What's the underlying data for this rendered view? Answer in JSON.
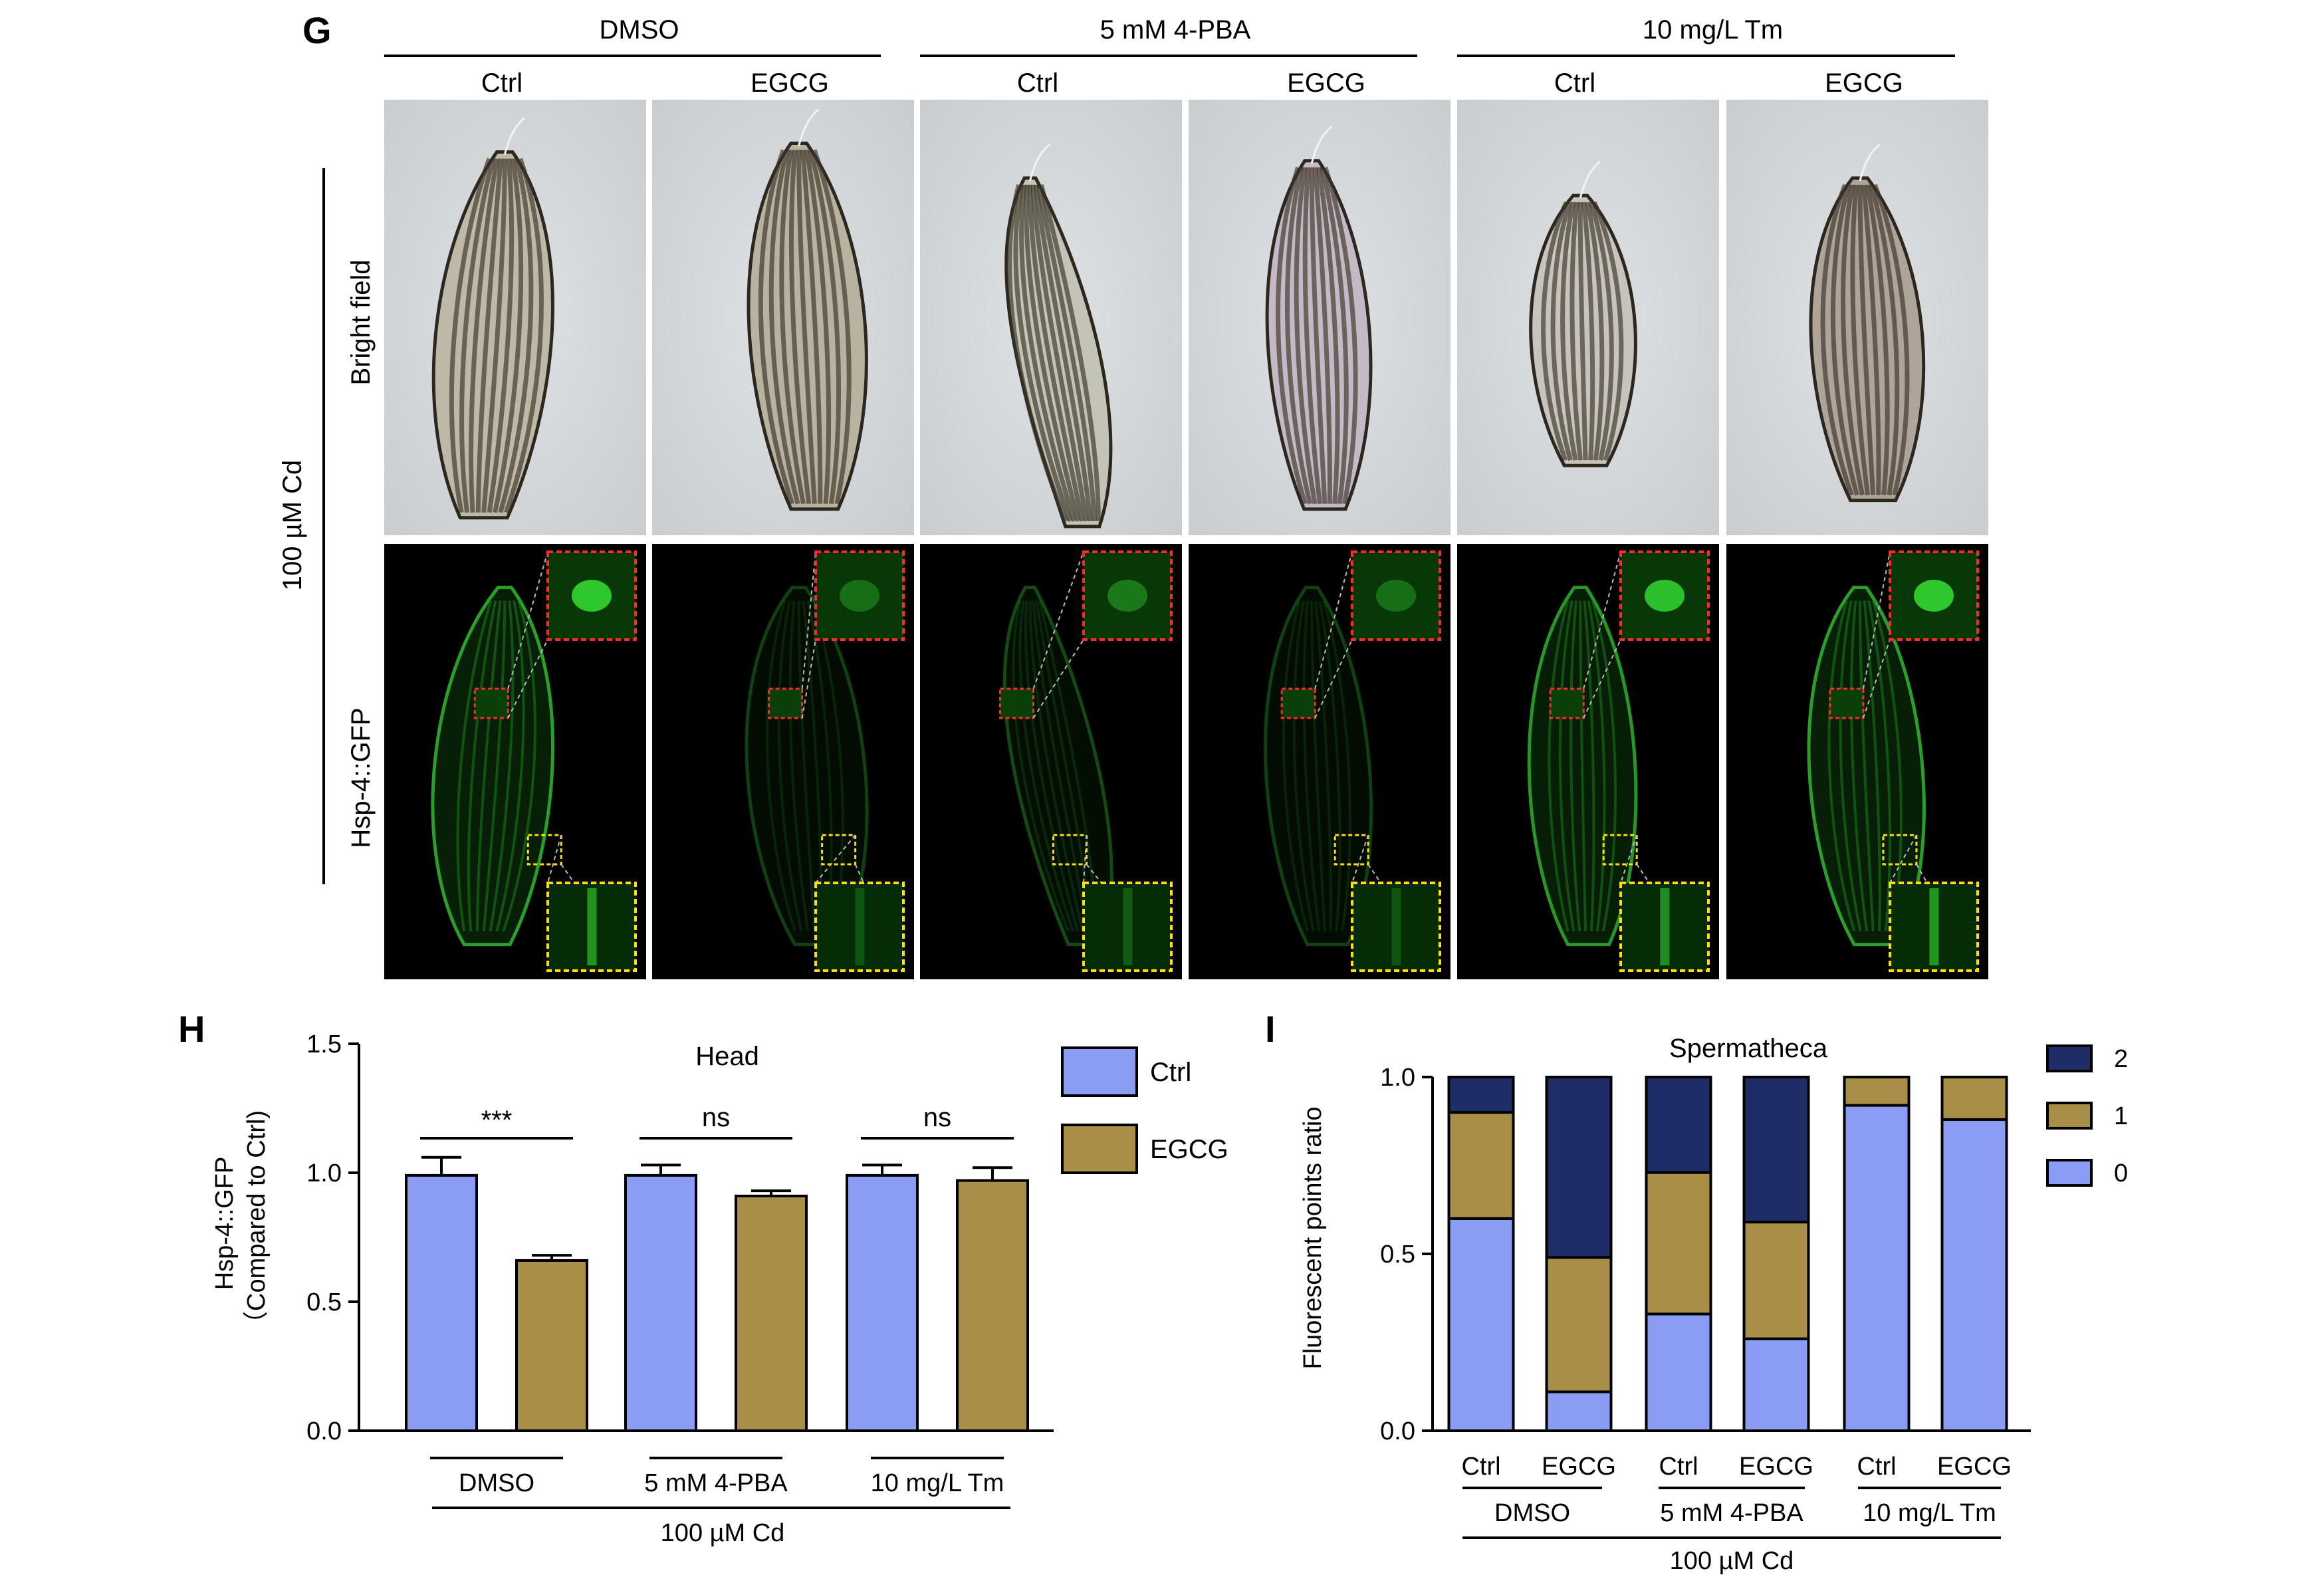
{
  "panel_g": {
    "panel_label": "G",
    "groups": [
      "DMSO",
      "5 mM 4-PBA",
      "10 mg/L Tm"
    ],
    "columns": [
      "Ctrl",
      "EGCG",
      "Ctrl",
      "EGCG",
      "Ctrl",
      "EGCG"
    ],
    "row_labels": [
      "Bright field",
      "Hsp-4::GFP"
    ],
    "side_label": "100 µM Cd"
  },
  "panel_h": {
    "panel_label": "H",
    "chart_data": {
      "type": "bar",
      "title": "Head",
      "ylabel": "Hsp-4::GFP",
      "ylabel2": "（Compared to Ctrl)",
      "ylim": [
        0,
        1.5
      ],
      "yticks": [
        "0.0",
        "0.5",
        "1.0",
        "1.5"
      ],
      "groups": [
        "DMSO",
        "5 mM 4-PBA",
        "10 mg/L Tm"
      ],
      "bottom_label": "100 µM Cd",
      "series": [
        {
          "name": "Ctrl",
          "color": "#8b9cf4",
          "values": [
            0.99,
            0.99,
            0.99
          ],
          "errors": [
            0.07,
            0.04,
            0.04
          ]
        },
        {
          "name": "EGCG",
          "color": "#a98e48",
          "values": [
            0.66,
            0.91,
            0.97
          ],
          "errors": [
            0.02,
            0.02,
            0.05
          ]
        }
      ],
      "significance": [
        "***",
        "ns",
        "ns"
      ],
      "legend_position": "top-right"
    }
  },
  "panel_i": {
    "panel_label": "I",
    "chart_data": {
      "type": "bar",
      "stacked": true,
      "title": "Spermatheca",
      "ylabel": "Fluorescent points ratio",
      "ylim": [
        0,
        1.0
      ],
      "yticks": [
        "0.0",
        "0.5",
        "1.0"
      ],
      "categories": [
        "Ctrl",
        "EGCG",
        "Ctrl",
        "EGCG",
        "Ctrl",
        "EGCG"
      ],
      "groups": [
        "DMSO",
        "5 mM 4-PBA",
        "10 mg/L Tm"
      ],
      "bottom_label": "100 µM Cd",
      "series": [
        {
          "name": "0",
          "color": "#8b9cf4",
          "values": [
            0.6,
            0.11,
            0.33,
            0.26,
            0.92,
            0.88
          ]
        },
        {
          "name": "1",
          "color": "#a98e48",
          "values": [
            0.3,
            0.38,
            0.4,
            0.33,
            0.08,
            0.12
          ]
        },
        {
          "name": "2",
          "color": "#1f2d66",
          "values": [
            0.1,
            0.51,
            0.27,
            0.41,
            0.0,
            0.0
          ]
        }
      ],
      "legend_order": [
        "2",
        "1",
        "0"
      ],
      "legend_position": "top-right"
    }
  }
}
